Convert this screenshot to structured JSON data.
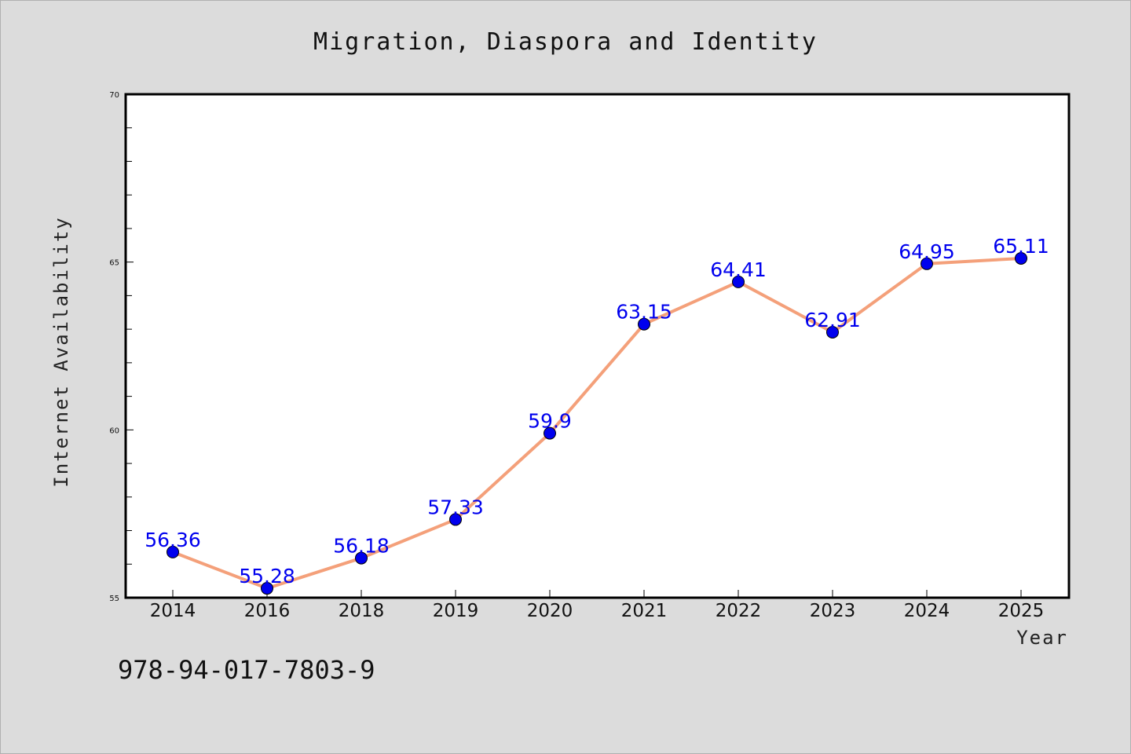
{
  "chart_data": {
    "type": "line",
    "title": "Migration, Diaspora and Identity",
    "xlabel": "Year",
    "ylabel": "Internet Availability",
    "categories": [
      "2014",
      "2016",
      "2018",
      "2019",
      "2020",
      "2021",
      "2022",
      "2023",
      "2024",
      "2025"
    ],
    "series": [
      {
        "values": [
          56.36,
          55.28,
          56.18,
          57.33,
          59.9,
          63.15,
          64.41,
          62.91,
          64.95,
          65.11
        ],
        "labels": [
          "56.36",
          "55.28",
          "56.18",
          "57.33",
          "59.9",
          "63.15",
          "64.41",
          "62.91",
          "64.95",
          "65.11"
        ],
        "line_color": "#f4a07a",
        "marker_color": "#0000ee"
      }
    ],
    "ylim": [
      55,
      70
    ],
    "yticks": [
      "55",
      "60",
      "65",
      "70"
    ],
    "grid": false,
    "legend": "none"
  },
  "footer": {
    "isbn": "978-94-017-7803-9"
  }
}
